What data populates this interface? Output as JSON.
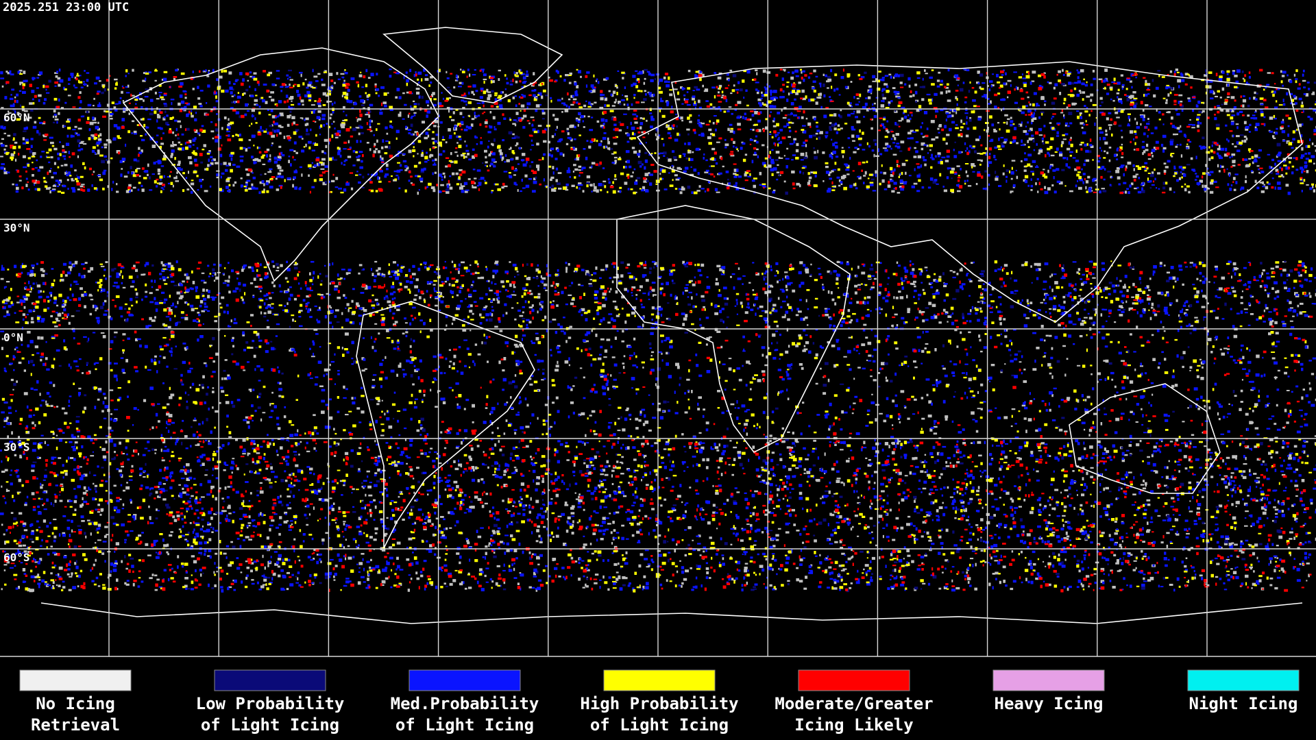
{
  "header": {
    "timestamp": "2025.251 23:00 UTC"
  },
  "map": {
    "latitude_labels": [
      "60°N",
      "30°N",
      "0°N",
      "30°S",
      "60°S"
    ]
  },
  "legend": [
    {
      "lines": [
        "No Icing",
        "Retrieval"
      ],
      "color": "#f0f0f0"
    },
    {
      "lines": [
        "Low Probability",
        "of Light Icing"
      ],
      "color": "#0a0a78"
    },
    {
      "lines": [
        "Med.Probability",
        "of Light Icing"
      ],
      "color": "#0a14ff"
    },
    {
      "lines": [
        "High Probability",
        "of Light Icing"
      ],
      "color": "#ffff00"
    },
    {
      "lines": [
        "Moderate/Greater",
        "Icing Likely"
      ],
      "color": "#ff0000"
    },
    {
      "lines": [
        "Heavy Icing"
      ],
      "color": "#e6a0e6"
    },
    {
      "lines": [
        "Night Icing"
      ],
      "color": "#00f0f0"
    }
  ]
}
